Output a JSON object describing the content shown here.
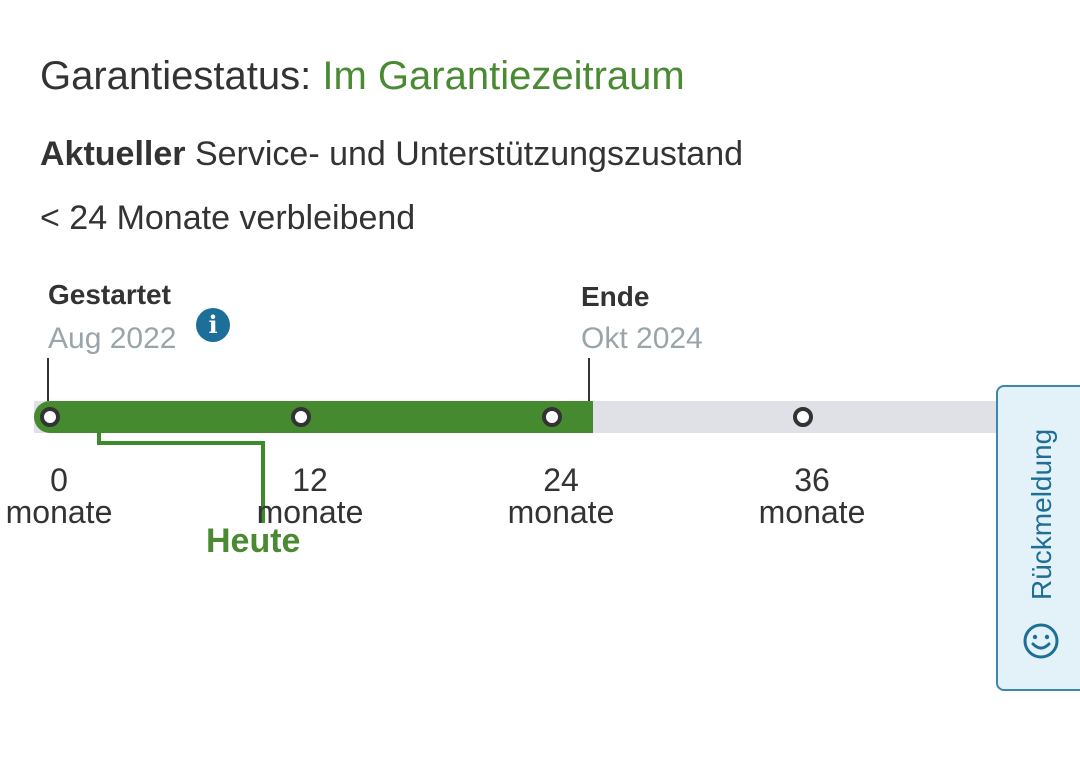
{
  "warranty": {
    "status_label": "Garantiestatus:",
    "status_value": "Im Garantiezeitraum",
    "status_color": "#4a8a32",
    "service_bold": "Aktueller",
    "service_rest": "Service- und Unterstützungszustand",
    "remaining": "< 24 Monate verbleibend"
  },
  "timeline": {
    "start": {
      "label": "Gestartet",
      "date": "Aug 2022"
    },
    "end": {
      "label": "Ende",
      "date": "Okt 2024"
    },
    "info_icon": "info-icon",
    "ticks": [
      {
        "value": "0",
        "unit": "monate"
      },
      {
        "value": "12",
        "unit": "monate"
      },
      {
        "value": "24",
        "unit": "monate"
      },
      {
        "value": "36",
        "unit": "monate"
      }
    ],
    "today_label": "Heute",
    "progress_color": "#458a2e",
    "track_color": "#dfe1e6"
  },
  "feedback": {
    "label": "Rückmeldung",
    "icon": "smiley-icon"
  }
}
